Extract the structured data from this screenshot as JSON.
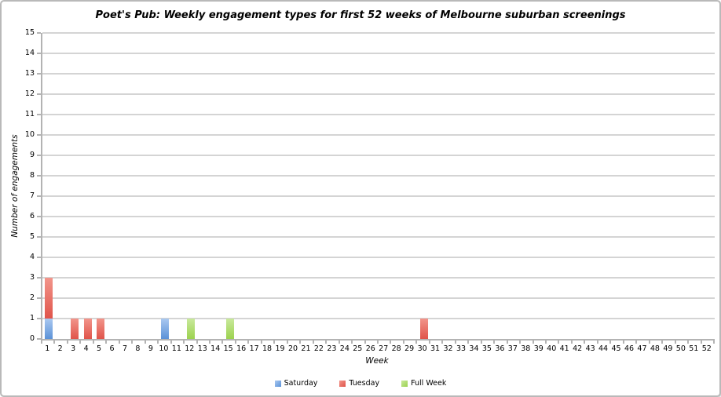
{
  "chart_data": {
    "type": "bar",
    "stacked": true,
    "title": "Poet's Pub: Weekly engagement types for first 52 weeks of Melbourne suburban screenings",
    "xlabel": "Week",
    "ylabel": "Number of engagements",
    "ylim": [
      0,
      15
    ],
    "y_tick_step": 1,
    "grid": "horizontal-gridlines",
    "legend_position": "bottom-center",
    "x_categories": [
      1,
      2,
      3,
      4,
      5,
      6,
      7,
      8,
      9,
      10,
      11,
      12,
      13,
      14,
      15,
      16,
      17,
      18,
      19,
      20,
      21,
      22,
      23,
      24,
      25,
      26,
      27,
      28,
      29,
      30,
      31,
      32,
      33,
      34,
      35,
      36,
      37,
      38,
      39,
      40,
      41,
      42,
      43,
      44,
      45,
      46,
      47,
      48,
      49,
      50,
      51,
      52
    ],
    "series": [
      {
        "name": "Saturday",
        "color": "#6f9fe0",
        "gradient_top": "#a9c8f0",
        "gradient_bottom": "#5b92d8",
        "points": [
          {
            "x": 1,
            "y": 1
          },
          {
            "x": 10,
            "y": 1
          }
        ]
      },
      {
        "name": "Tuesday",
        "color": "#e4655b",
        "gradient_top": "#f2958b",
        "gradient_bottom": "#e0544a",
        "points": [
          {
            "x": 1,
            "y": 2
          },
          {
            "x": 3,
            "y": 1
          },
          {
            "x": 4,
            "y": 1
          },
          {
            "x": 5,
            "y": 1
          },
          {
            "x": 30,
            "y": 1
          }
        ]
      },
      {
        "name": "Full Week",
        "color": "#a8d96a",
        "gradient_top": "#c9e99c",
        "gradient_bottom": "#9cd24f",
        "points": [
          {
            "x": 12,
            "y": 1
          },
          {
            "x": 15,
            "y": 1
          }
        ]
      }
    ],
    "colors": {
      "gridline": "#d4d4d4",
      "axis": "#b3b3b3",
      "background": "#ffffff",
      "text": "#000000"
    }
  }
}
